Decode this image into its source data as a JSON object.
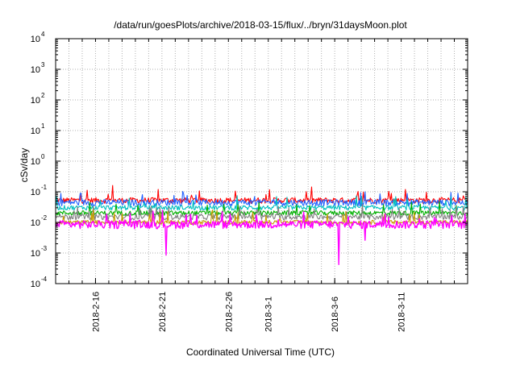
{
  "chart_data": {
    "type": "line",
    "title": "/data/run/goesPlots/archive/2018-03-15/flux/../bryn/31daysMoon.plot",
    "xlabel": "Coordinated Universal Time (UTC)",
    "ylabel": "cSv/day",
    "y_scale": "log",
    "ylim": [
      0.0001,
      10000
    ],
    "y_ticks": [
      {
        "value": 0.0001,
        "base": "10",
        "exp": "-4"
      },
      {
        "value": 0.001,
        "base": "10",
        "exp": "-3"
      },
      {
        "value": 0.01,
        "base": "10",
        "exp": "-2"
      },
      {
        "value": 0.1,
        "base": "10",
        "exp": "-1"
      },
      {
        "value": 1,
        "base": "10",
        "exp": "0"
      },
      {
        "value": 10,
        "base": "10",
        "exp": "1"
      },
      {
        "value": 100,
        "base": "10",
        "exp": "2"
      },
      {
        "value": 1000,
        "base": "10",
        "exp": "3"
      },
      {
        "value": 10000,
        "base": "10",
        "exp": "4"
      }
    ],
    "xlim": [
      "2018-02-13",
      "2018-03-16"
    ],
    "x_ticks": [
      "2018-2-16",
      "2018-2-21",
      "2018-2-26",
      "2018-3-1",
      "2018-3-6",
      "2018-3-11"
    ],
    "x_tick_dates": [
      "2018-02-16",
      "2018-02-21",
      "2018-02-26",
      "2018-03-01",
      "2018-03-06",
      "2018-03-11"
    ],
    "grid": true,
    "series": [
      {
        "color": "#ff0000",
        "base": 0.052,
        "spread": 0.22,
        "spikes": [
          {
            "date": "2018-02-17",
            "value": 0.16
          },
          {
            "date": "2018-03-11",
            "value": 0.12
          }
        ]
      },
      {
        "color": "#2060ff",
        "base": 0.044,
        "spread": 0.24,
        "spikes": [
          {
            "date": "2018-03-08",
            "value": 0.1
          },
          {
            "date": "2018-03-15",
            "value": 0.09
          }
        ]
      },
      {
        "color": "#00c0c0",
        "base": 0.03,
        "spread": 0.18,
        "spikes": []
      },
      {
        "color": "#00b000",
        "base": 0.02,
        "spread": 0.18,
        "spikes": []
      },
      {
        "color": "#808080",
        "base": 0.015,
        "spread": 0.22,
        "spikes": []
      },
      {
        "color": "#c8a000",
        "base": 0.01,
        "spread": 0.16,
        "spikes": []
      },
      {
        "color": "#ff00ff",
        "base": 0.0085,
        "spread": 0.3,
        "spikes": [
          {
            "date": "2018-02-21",
            "value": 0.00085
          },
          {
            "date": "2018-03-06",
            "value": 0.00042
          },
          {
            "date": "2018-03-08",
            "value": 0.0026
          }
        ]
      }
    ]
  }
}
